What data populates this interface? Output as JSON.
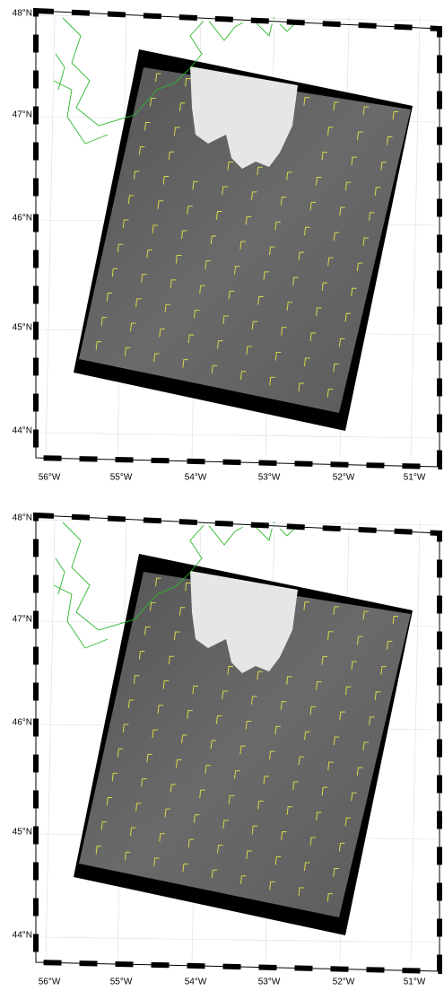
{
  "panels": [
    {
      "lat_labels": [
        "48°N",
        "47°N",
        "46°N",
        "45°N",
        "44°N"
      ],
      "lon_labels": [
        "56°W",
        "55°W",
        "54°W",
        "53°W",
        "52°W",
        "51°W"
      ]
    },
    {
      "lat_labels": [
        "48°N",
        "47°N",
        "46°N",
        "45°N",
        "44°N"
      ],
      "lon_labels": [
        "56°W",
        "55°W",
        "54°W",
        "53°W",
        "52°W",
        "51°W"
      ]
    }
  ]
}
